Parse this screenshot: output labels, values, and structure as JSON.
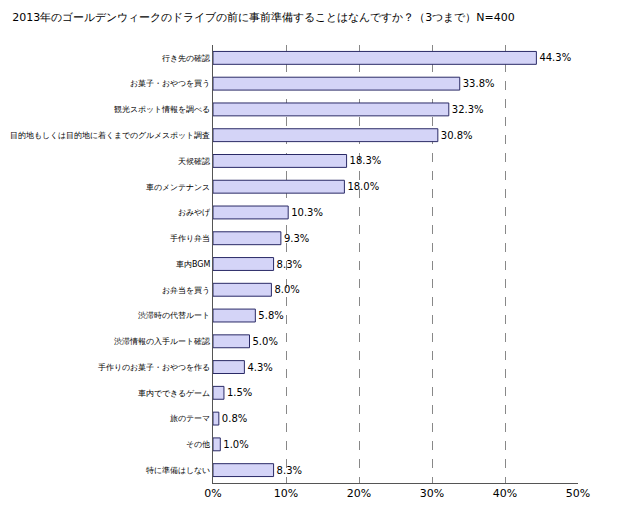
{
  "chart_data": {
    "type": "bar",
    "orientation": "horizontal",
    "title": "2013年のゴールデンウィークのドライブの前に事前準備することはなんですか？（3つまで）N=400",
    "categories": [
      "行き先の確認",
      "お菓子・おやつを買う",
      "観光スポット情報を調べる",
      "目的地もしくは目的地に着くまでのグルメスポット調査",
      "天候確認",
      "車のメンテナンス",
      "おみやげ",
      "手作り弁当",
      "車内BGM",
      "お弁当を買う",
      "渋滞時の代替ルート",
      "渋滞情報の入手ルート確認",
      "手作りのお菓子・おやつを作る",
      "車内でできるゲーム",
      "旅のテーマ",
      "その他",
      "特に準備はしない"
    ],
    "values": [
      44.3,
      33.8,
      32.3,
      30.8,
      18.3,
      18.0,
      10.3,
      9.3,
      8.3,
      8.0,
      5.8,
      5.0,
      4.3,
      1.5,
      0.8,
      1.0,
      8.3
    ],
    "value_labels": [
      "44.3%",
      "33.8%",
      "32.3%",
      "30.8%",
      "18.3%",
      "18.0%",
      "10.3%",
      "9.3%",
      "8.3%",
      "8.0%",
      "5.8%",
      "5.0%",
      "4.3%",
      "1.5%",
      "0.8%",
      "1.0%",
      "8.3%"
    ],
    "data_labels": true,
    "color": "#d4d4f7",
    "xlim": [
      0,
      50
    ],
    "xticks": [
      {
        "value": 0,
        "label": "0%"
      },
      {
        "value": 10,
        "label": "10%"
      },
      {
        "value": 20,
        "label": "20%"
      },
      {
        "value": 30,
        "label": "30%"
      },
      {
        "value": 40,
        "label": "40%"
      },
      {
        "value": 50,
        "label": "50%"
      }
    ],
    "grid": true
  }
}
